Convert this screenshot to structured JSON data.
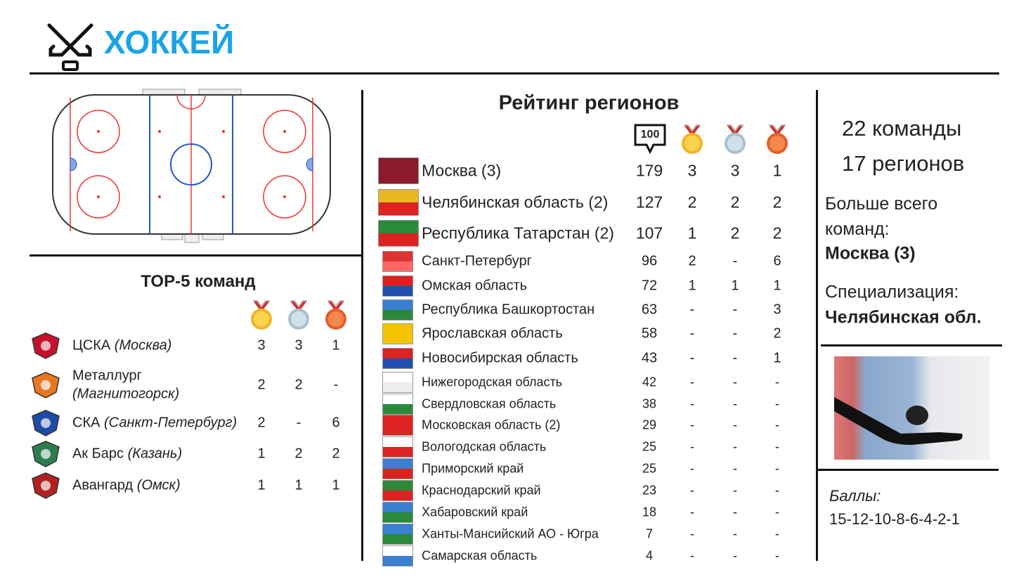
{
  "header": {
    "title": "ХОККЕЙ"
  },
  "top5": {
    "title": "ТОР-5 команд",
    "rows": [
      {
        "name": "ЦСКА",
        "city": "(Москва)",
        "gold": 3,
        "silver": 3,
        "bronze": 1
      },
      {
        "name": "Металлург",
        "city": "(Магнитогорск)",
        "gold": 2,
        "silver": 2,
        "bronze": "-"
      },
      {
        "name": "СКА",
        "city": "(Санкт-Петербург)",
        "gold": 2,
        "silver": "-",
        "bronze": 6
      },
      {
        "name": "Ак Барс",
        "city": "(Казань)",
        "gold": 1,
        "silver": 2,
        "bronze": 2
      },
      {
        "name": "Авангард",
        "city": "(Омск)",
        "gold": 1,
        "silver": 1,
        "bronze": 1
      }
    ]
  },
  "regions": {
    "title": "Рейтинг регионов",
    "points_icon": "100",
    "rows": [
      {
        "name": "Москва (3)",
        "points": 179,
        "gold": 3,
        "silver": 3,
        "bronze": 1
      },
      {
        "name": "Челябинская область (2)",
        "points": 127,
        "gold": 2,
        "silver": 2,
        "bronze": 2
      },
      {
        "name": "Республика Татарстан (2)",
        "points": 107,
        "gold": 1,
        "silver": 2,
        "bronze": 2
      },
      {
        "name": "Санкт-Петербург",
        "points": 96,
        "gold": 2,
        "silver": "-",
        "bronze": 6
      },
      {
        "name": "Омская область",
        "points": 72,
        "gold": 1,
        "silver": 1,
        "bronze": 1
      },
      {
        "name": "Республика Башкортостан",
        "points": 63,
        "gold": "-",
        "silver": "-",
        "bronze": 3
      },
      {
        "name": "Ярославская область",
        "points": 58,
        "gold": "-",
        "silver": "-",
        "bronze": 2
      },
      {
        "name": "Новосибирская область",
        "points": 43,
        "gold": "-",
        "silver": "-",
        "bronze": 1
      },
      {
        "name": "Нижегородская область",
        "points": 42,
        "gold": "-",
        "silver": "-",
        "bronze": "-"
      },
      {
        "name": "Свердловская область",
        "points": 38,
        "gold": "-",
        "silver": "-",
        "bronze": "-"
      },
      {
        "name": "Московская область (2)",
        "points": 29,
        "gold": "-",
        "silver": "-",
        "bronze": "-"
      },
      {
        "name": "Вологодская область",
        "points": 25,
        "gold": "-",
        "silver": "-",
        "bronze": "-"
      },
      {
        "name": "Приморский край",
        "points": 25,
        "gold": "-",
        "silver": "-",
        "bronze": "-"
      },
      {
        "name": "Краснодарский край",
        "points": 23,
        "gold": "-",
        "silver": "-",
        "bronze": "-"
      },
      {
        "name": "Хабаровский край",
        "points": 18,
        "gold": "-",
        "silver": "-",
        "bronze": "-"
      },
      {
        "name": "Ханты-Мансийский АО - Югра",
        "points": 7,
        "gold": "-",
        "silver": "-",
        "bronze": "-"
      },
      {
        "name": "Самарская область",
        "points": 4,
        "gold": "-",
        "silver": "-",
        "bronze": "-"
      }
    ]
  },
  "summary": {
    "teams": "22 команды",
    "regions": "17 регионов",
    "most_label": "Больше всего команд:",
    "most_value": "Москва (3)",
    "spec_label": "Специализация:",
    "spec_value": "Челябинская обл.",
    "points_label": "Баллы:",
    "points_value": "15-12-10-8-6-4-2-1"
  }
}
